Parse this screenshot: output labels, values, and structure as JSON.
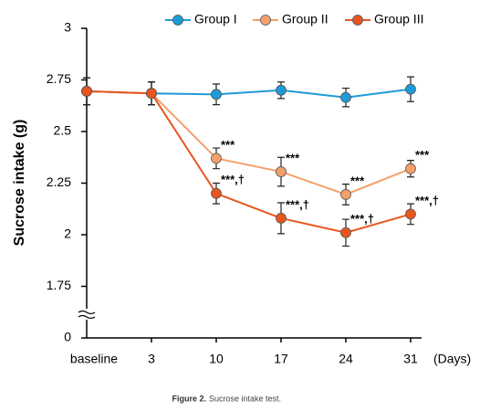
{
  "chart_data": {
    "type": "line",
    "y_label": "Sucrose  intake (g)",
    "x_label": "(Days)",
    "caption_label": "Figure 2.",
    "caption": "Sucrose intake test.",
    "categories": [
      "baseline",
      "3",
      "10",
      "17",
      "24",
      "31"
    ],
    "series": [
      {
        "name": "Group I",
        "color": "#1e9bd7",
        "values": [
          2.695,
          2.685,
          2.68,
          2.7,
          2.665,
          2.705
        ],
        "errors": [
          0.065,
          0.055,
          0.05,
          0.04,
          0.045,
          0.06
        ],
        "labels": [
          null,
          null,
          null,
          null,
          null,
          null
        ]
      },
      {
        "name": "Group II",
        "color": "#f5a06c",
        "values": [
          2.695,
          2.685,
          2.37,
          2.305,
          2.195,
          2.32
        ],
        "errors": [
          0.065,
          0.055,
          0.05,
          0.07,
          0.05,
          0.04
        ],
        "labels": [
          null,
          null,
          "***",
          "***",
          "***",
          "***"
        ]
      },
      {
        "name": "Group III",
        "color": "#e8561f",
        "values": [
          2.695,
          2.685,
          2.2,
          2.08,
          2.01,
          2.1
        ],
        "errors": [
          0.065,
          0.055,
          0.05,
          0.075,
          0.065,
          0.05
        ],
        "labels": [
          null,
          null,
          "***,†",
          "***,†",
          "***,†",
          "***,†"
        ]
      }
    ],
    "ylim": [
      0,
      3
    ],
    "ybreak": [
      0,
      1.5
    ],
    "yticks": [
      0,
      1.75,
      2,
      2.25,
      2.5,
      2.75,
      3
    ],
    "legend": "top",
    "grid": false
  }
}
